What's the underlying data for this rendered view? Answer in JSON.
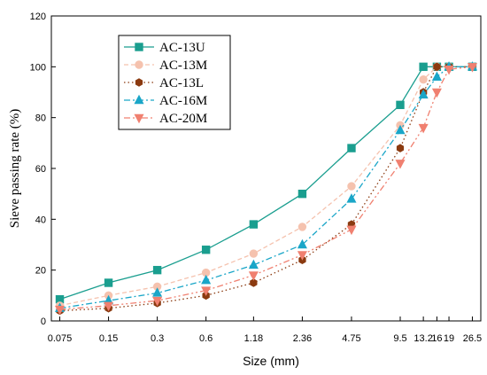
{
  "chart_data": {
    "type": "line",
    "title": "",
    "xlabel": "Size (mm)",
    "ylabel": "Sieve passing rate (%)",
    "x_scale": "log",
    "x_ticks": [
      "0.075",
      "0.15",
      "0.3",
      "0.6",
      "1.18",
      "2.36",
      "4.75",
      "9.5",
      "13.2",
      "16",
      "19",
      "26.5"
    ],
    "x_tick_values": [
      0.075,
      0.15,
      0.3,
      0.6,
      1.18,
      2.36,
      4.75,
      9.5,
      13.2,
      16,
      19,
      26.5
    ],
    "ylim": [
      0,
      120
    ],
    "y_ticks": [
      0,
      20,
      40,
      60,
      80,
      100,
      120
    ],
    "grid": false,
    "legend_position": "top-left",
    "series": [
      {
        "name": "AC-13U",
        "color": "#1a9e8f",
        "line": "solid",
        "marker": "square",
        "x": [
          0.075,
          0.15,
          0.3,
          0.6,
          1.18,
          2.36,
          4.75,
          9.5,
          13.2,
          16,
          19,
          26.5
        ],
        "y": [
          8.5,
          15,
          20,
          28,
          38,
          50,
          68,
          85,
          100,
          100,
          100,
          100
        ]
      },
      {
        "name": "AC-13M",
        "color": "#f5c2ae",
        "line": "dashed",
        "marker": "circle",
        "x": [
          0.075,
          0.15,
          0.3,
          0.6,
          1.18,
          2.36,
          4.75,
          9.5,
          13.2,
          16,
          19,
          26.5
        ],
        "y": [
          6,
          10,
          13.5,
          19,
          26.5,
          37,
          53,
          77,
          95,
          100,
          100,
          100
        ]
      },
      {
        "name": "AC-13L",
        "color": "#8b3a10",
        "line": "dotted",
        "marker": "hexagon",
        "x": [
          0.075,
          0.15,
          0.3,
          0.6,
          1.18,
          2.36,
          4.75,
          9.5,
          13.2,
          16,
          19,
          26.5
        ],
        "y": [
          4,
          5,
          7,
          10,
          15,
          24,
          38,
          68,
          90,
          100,
          100,
          100
        ]
      },
      {
        "name": "AC-16M",
        "color": "#1aa6c8",
        "line": "dashdot",
        "marker": "triangle-up",
        "x": [
          0.075,
          0.15,
          0.3,
          0.6,
          1.18,
          2.36,
          4.75,
          9.5,
          13.2,
          16,
          19,
          26.5
        ],
        "y": [
          5,
          8,
          11,
          16,
          22,
          30,
          48,
          75,
          89,
          96,
          100,
          100
        ]
      },
      {
        "name": "AC-20M",
        "color": "#f08070",
        "line": "dashdotdot",
        "marker": "triangle-down",
        "x": [
          0.075,
          0.15,
          0.3,
          0.6,
          1.18,
          2.36,
          4.75,
          9.5,
          13.2,
          16,
          19,
          26.5
        ],
        "y": [
          4.5,
          6,
          8,
          12,
          18,
          26,
          36,
          62,
          76,
          90,
          99,
          100
        ]
      }
    ]
  }
}
